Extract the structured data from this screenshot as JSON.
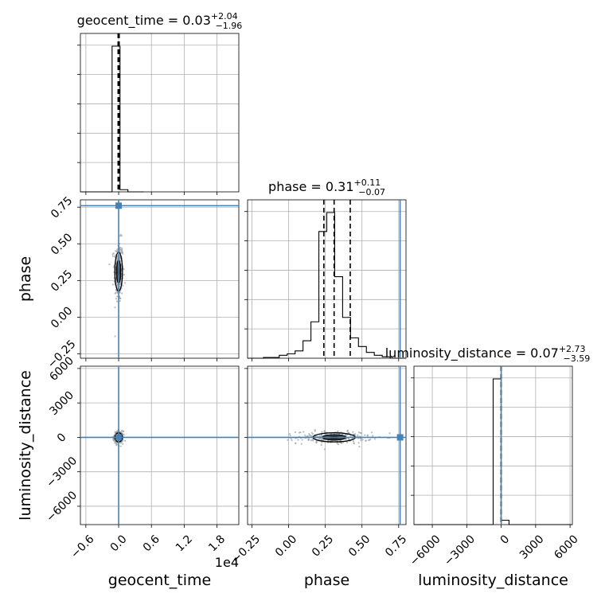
{
  "chart_data": {
    "type": "corner",
    "colors": {
      "truth": "#4682b4",
      "hist": "#000000",
      "scatter": "#9e9e9e",
      "grid": "#b0b0b0"
    },
    "params": [
      {
        "key": "geocent_time",
        "xlabel": "geocent_time",
        "ylabel": "",
        "scale_label": "1e4",
        "title_prefix": "geocent_time = ",
        "median": "0.03",
        "plus": "+2.04",
        "minus": "−1.96",
        "range": [
          -0.7,
          2.2
        ],
        "ticks": [
          -0.6,
          0.0,
          0.6,
          1.2,
          1.8
        ],
        "tick_labels": [
          "−0.6",
          "0.0",
          "0.6",
          "1.2",
          "1.8"
        ],
        "quantiles": [
          -0.01,
          0.0,
          0.01
        ],
        "truth": null,
        "hist_edges": [
          -0.7,
          -0.555,
          -0.41,
          -0.265,
          -0.12,
          0.025,
          0.17,
          0.315,
          0.46
        ],
        "hist_counts": [
          0,
          0,
          0,
          0,
          1.0,
          0.015,
          0,
          0
        ]
      },
      {
        "key": "phase",
        "xlabel": "phase",
        "ylabel": "phase",
        "title_prefix": "phase = ",
        "median": "0.31",
        "plus": "+0.11",
        "minus": "−0.07",
        "range": [
          -0.28,
          0.8
        ],
        "ticks": [
          -0.25,
          0.0,
          0.25,
          0.5,
          0.75
        ],
        "tick_labels": [
          "−0.25",
          "0.00",
          "0.25",
          "0.50",
          "0.75"
        ],
        "quantiles": [
          0.24,
          0.31,
          0.42
        ],
        "truth": 0.76,
        "hist_edges": [
          -0.28,
          -0.226,
          -0.172,
          -0.118,
          -0.064,
          -0.01,
          0.044,
          0.098,
          0.152,
          0.206,
          0.26,
          0.314,
          0.368,
          0.422,
          0.476,
          0.53,
          0.584,
          0.638,
          0.692,
          0.746,
          0.8
        ],
        "hist_counts": [
          0,
          0,
          0.005,
          0.005,
          0.02,
          0.03,
          0.05,
          0.12,
          0.25,
          0.87,
          1.0,
          0.56,
          0.28,
          0.14,
          0.08,
          0.04,
          0.02,
          0.01,
          0,
          0
        ]
      },
      {
        "key": "luminosity_distance",
        "xlabel": "luminosity_distance",
        "ylabel": "luminosity_distance",
        "title_prefix": "luminosity_distance = ",
        "median": "0.07",
        "plus": "+2.73",
        "minus": "−3.59",
        "range": [
          -7600,
          6200
        ],
        "ticks": [
          -6000,
          -3000,
          0,
          3000,
          6000
        ],
        "tick_labels": [
          "−6000",
          "−3000",
          "0",
          "3000",
          "6000"
        ],
        "quantiles": [
          -10,
          0,
          10
        ],
        "truth": 0,
        "hist_edges": [
          -7600,
          -6910,
          -6220,
          -5530,
          -4840,
          -4150,
          -3460,
          -2770,
          -2080,
          -1390,
          -700,
          -10,
          680,
          1370,
          2060,
          2750,
          3440,
          4130,
          4820,
          5510,
          6200
        ],
        "hist_counts": [
          0,
          0,
          0,
          0,
          0,
          0,
          0,
          0,
          0,
          0,
          1.0,
          0.03,
          0,
          0,
          0,
          0,
          0,
          0,
          0,
          0
        ]
      }
    ],
    "truth_points": [
      {
        "x": 0,
        "y": 0.76
      },
      {
        "x": 0,
        "y": 0
      },
      {
        "x": 0.76,
        "y": 0
      }
    ]
  }
}
